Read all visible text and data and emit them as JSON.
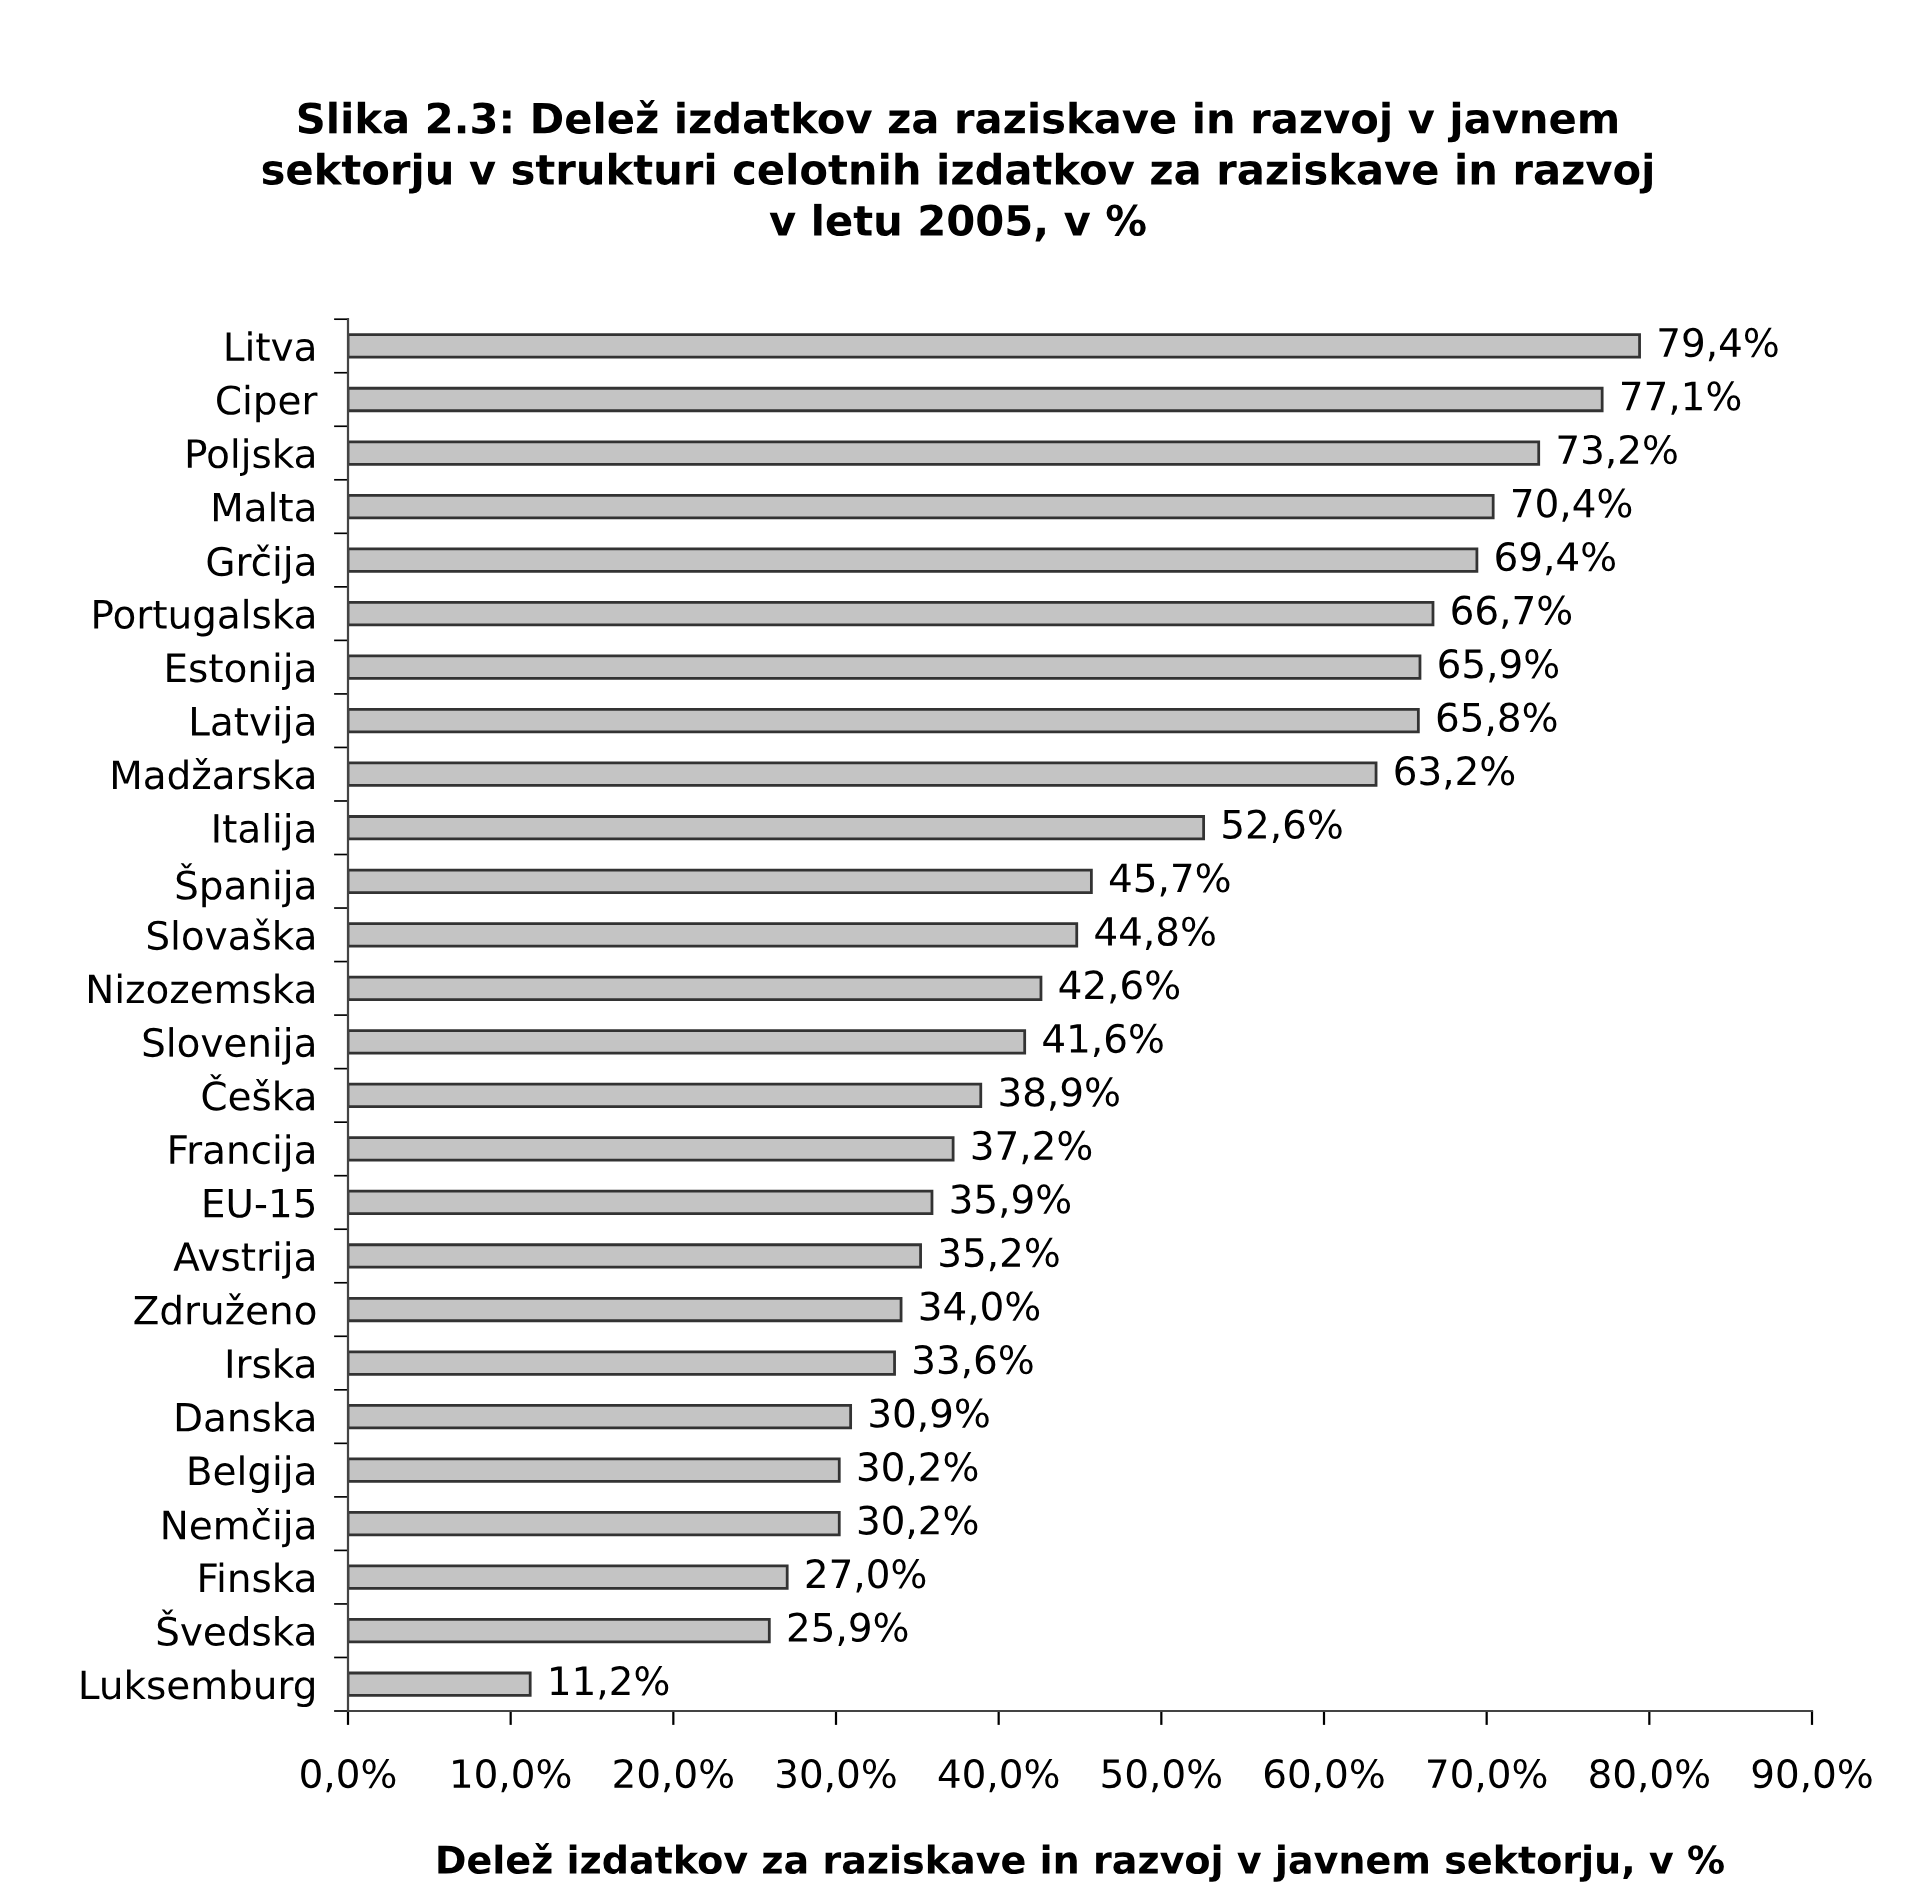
{
  "chart_data": {
    "type": "bar",
    "orientation": "horizontal",
    "title": "Slika 2.3: Delež izdatkov za raziskave in razvoj v javnem\nsektorju v strukturi celotnih izdatkov za raziskave in razvoj\nv letu 2005, v %",
    "xlabel": "Delež izdatkov za raziskave in razvoj v javnem sektorju, v %",
    "categories": [
      "Litva",
      "Ciper",
      "Poljska",
      "Malta",
      "Grčija",
      "Portugalska",
      "Estonija",
      "Latvija",
      "Madžarska",
      "Italija",
      "Španija",
      "Slovaška",
      "Nizozemska",
      "Slovenija",
      "Češka",
      "Francija",
      "EU-15",
      "Avstrija",
      "Združeno",
      "Irska",
      "Danska",
      "Belgija",
      "Nemčija",
      "Finska",
      "Švedska",
      "Luksemburg"
    ],
    "values": [
      79.4,
      77.1,
      73.2,
      70.4,
      69.4,
      66.7,
      65.9,
      65.8,
      63.2,
      52.6,
      45.7,
      44.8,
      42.6,
      41.6,
      38.9,
      37.2,
      35.9,
      35.2,
      34.0,
      33.6,
      30.9,
      30.2,
      30.2,
      27.0,
      25.9,
      11.2
    ],
    "value_labels": [
      "79,4%",
      "77,1%",
      "73,2%",
      "70,4%",
      "69,4%",
      "66,7%",
      "65,9%",
      "65,8%",
      "63,2%",
      "52,6%",
      "45,7%",
      "44,8%",
      "42,6%",
      "41,6%",
      "38,9%",
      "37,2%",
      "35,9%",
      "35,2%",
      "34,0%",
      "33,6%",
      "30,9%",
      "30,2%",
      "30,2%",
      "27,0%",
      "25,9%",
      "11,2%"
    ],
    "color": "#c4c4c4",
    "xlim": [
      0,
      90
    ],
    "xticks": [
      {
        "value": 0,
        "label": "0,0%"
      },
      {
        "value": 10,
        "label": "10,0%"
      },
      {
        "value": 20,
        "label": "20,0%"
      },
      {
        "value": 30,
        "label": "30,0%"
      },
      {
        "value": 40,
        "label": "40,0%"
      },
      {
        "value": 50,
        "label": "50,0%"
      },
      {
        "value": 60,
        "label": "60,0%"
      },
      {
        "value": 70,
        "label": "70,0%"
      },
      {
        "value": 80,
        "label": "80,0%"
      },
      {
        "value": 90,
        "label": "90,0%"
      }
    ],
    "grid": false,
    "legend": false
  }
}
